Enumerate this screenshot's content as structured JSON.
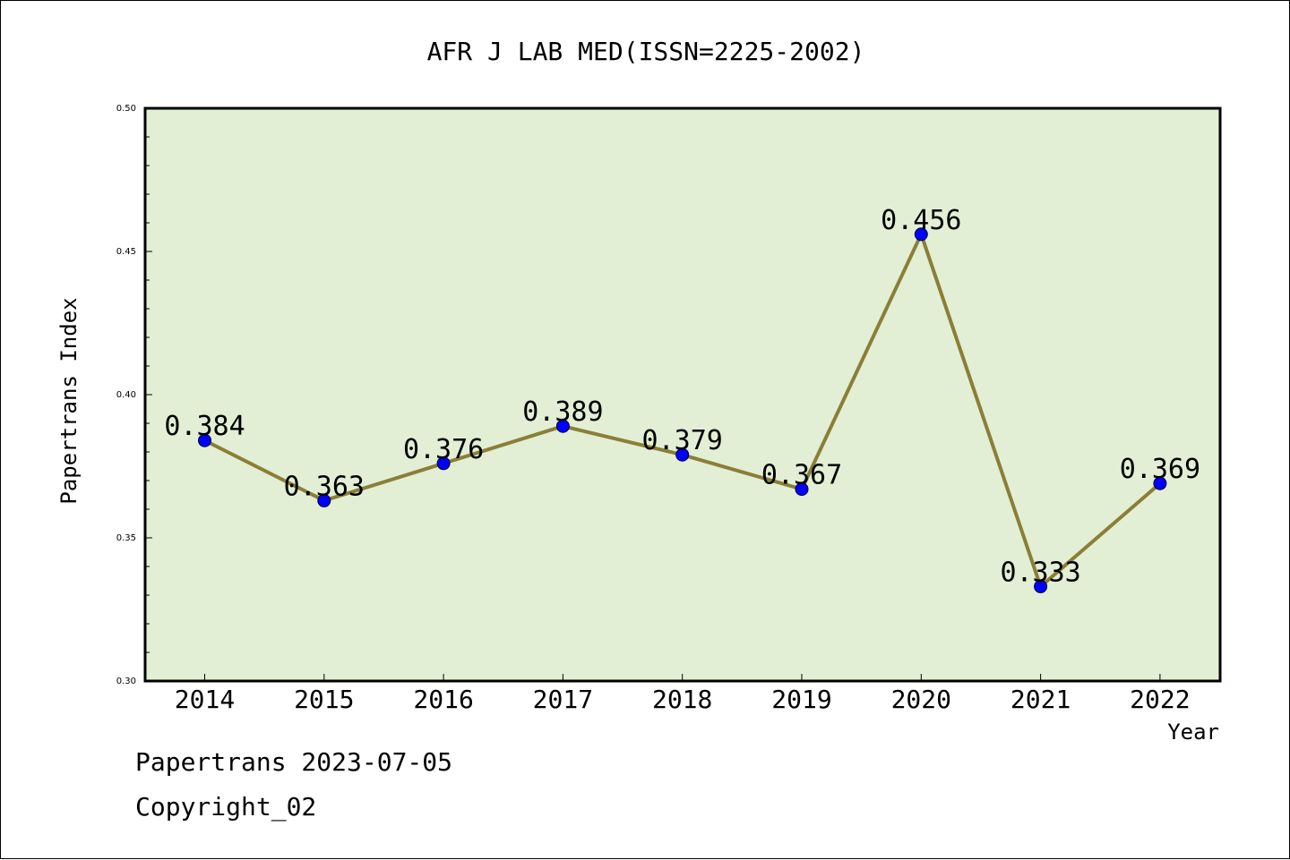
{
  "chart_data": {
    "type": "line",
    "title": "AFR J LAB MED(ISSN=2225-2002)",
    "xlabel": "Year",
    "ylabel": "Papertrans Index",
    "categories": [
      "2014",
      "2015",
      "2016",
      "2017",
      "2018",
      "2019",
      "2020",
      "2021",
      "2022"
    ],
    "series": [
      {
        "values": [
          0.384,
          0.363,
          0.376,
          0.389,
          0.379,
          0.367,
          0.456,
          0.333,
          0.369
        ],
        "data_labels": [
          "0.384",
          "0.363",
          "0.376",
          "0.389",
          "0.379",
          "0.367",
          "0.456",
          "0.333",
          "0.369"
        ]
      }
    ],
    "ylim": [
      0.3,
      0.5
    ],
    "yticks": [
      "0.30",
      "0.35",
      "0.40",
      "0.45",
      "0.50"
    ],
    "grid": false,
    "colors": {
      "plot_background": "#e2efd5",
      "line": "#8b7e36",
      "marker": "#0000ff",
      "axis": "#000000"
    }
  },
  "footer": {
    "line1": "Papertrans 2023-07-05",
    "line2": "Copyright_02"
  }
}
